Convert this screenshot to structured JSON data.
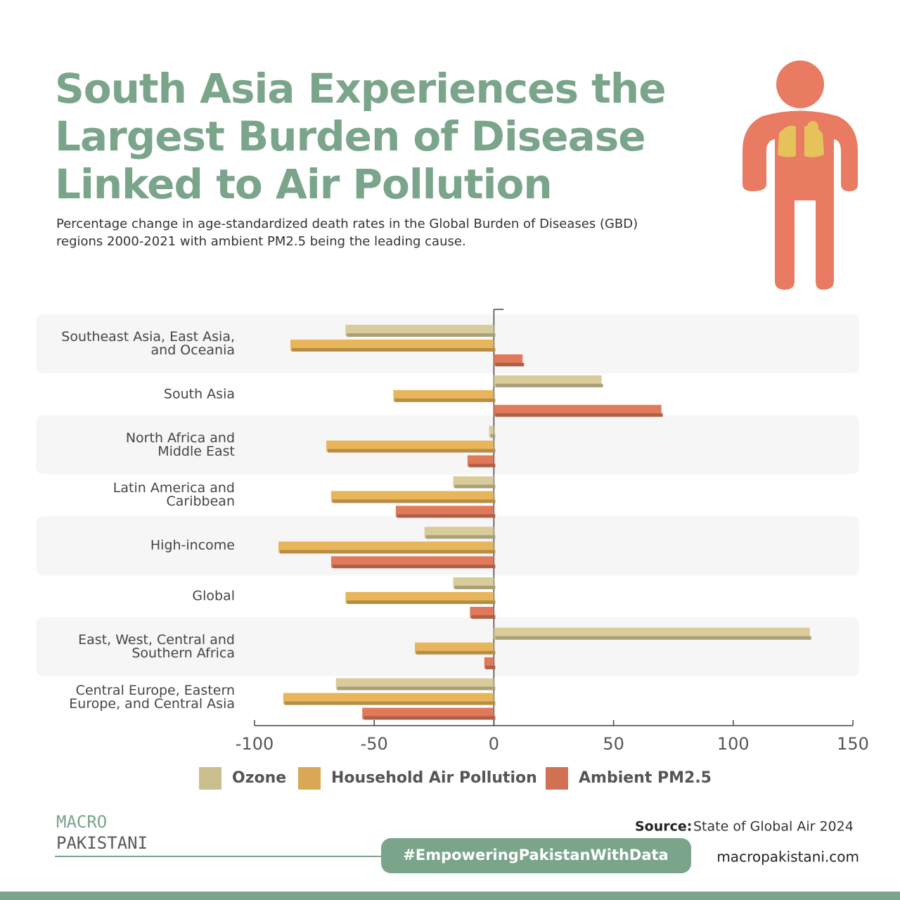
{
  "chart_data": {
    "type": "bar",
    "orientation": "horizontal",
    "title": "South Asia Experiences the Largest Burden of Disease Linked to Air Pollution",
    "subtitle": "Percentage change in age-standardized death rates in the Global Burden of Diseases (GBD) regions 2000-2021 with ambient PM2.5 being the leading cause.",
    "categories": [
      "Southeast Asia, East Asia,\nand Oceania",
      "South Asia",
      "North Africa and\nMiddle East",
      "Latin America and\nCaribbean",
      "High-income",
      "Global",
      "East, West, Central and\nSouthern Africa",
      "Central Europe, Eastern\nEurope, and Central Asia"
    ],
    "series": [
      {
        "name": "Ozone",
        "color": "#d9cc9a",
        "values": [
          -62,
          45,
          -2,
          -17,
          -29,
          -17,
          132,
          -66
        ]
      },
      {
        "name": "Household Air Pollution",
        "color": "#e8b55a",
        "values": [
          -85,
          -42,
          -70,
          -68,
          -90,
          -62,
          -33,
          -88
        ]
      },
      {
        "name": "Ambient PM2.5",
        "color": "#e07a5a",
        "values": [
          12,
          70,
          -11,
          -41,
          -68,
          -10,
          -4,
          -55
        ]
      }
    ],
    "xlim": [
      -100,
      150
    ],
    "xticks": [
      -100,
      -50,
      0,
      50,
      100,
      150
    ],
    "legend": "bottom"
  },
  "footer": {
    "logo_top": "MACRO",
    "logo_bottom": "PAKISTANI",
    "source_label": "Source:",
    "source": "State of Global Air 2024",
    "hashtag": "#EmpoweringPakistanWithData",
    "website": "macropakistani.com"
  }
}
